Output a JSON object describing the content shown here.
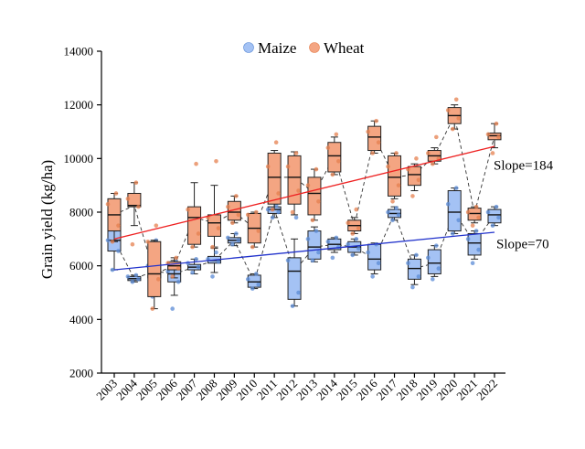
{
  "chart_data": {
    "type": "box",
    "title": "",
    "xlabel": "",
    "ylabel": "Grain yield (kg/ha)",
    "ylim": [
      2000,
      14000
    ],
    "yticks": [
      2000,
      4000,
      6000,
      8000,
      10000,
      12000,
      14000
    ],
    "grid": false,
    "legend": "top-center",
    "categories": [
      "2003",
      "2004",
      "2005",
      "2006",
      "2007",
      "2008",
      "2009",
      "2010",
      "2011",
      "2012",
      "2013",
      "2014",
      "2015",
      "2016",
      "2017",
      "2018",
      "2019",
      "2020",
      "2021",
      "2022"
    ],
    "series": [
      {
        "name": "Maize",
        "color": "#a4c2f4",
        "edge": "#5b8bd6",
        "boxes": [
          {
            "min": 5850,
            "q1": 6550,
            "median": 6950,
            "q3": 7350,
            "max": 7350,
            "points": [
              5850,
              6550,
              6950,
              7350
            ]
          },
          {
            "min": 5400,
            "q1": 5450,
            "median": 5520,
            "q3": 5600,
            "max": 5650,
            "points": [
              5400,
              5500,
              5600,
              5650
            ]
          },
          {
            "min": 4850,
            "q1": 5550,
            "median": 5800,
            "q3": 6050,
            "max": 6950,
            "points": [
              4850,
              5600,
              6000,
              6950
            ]
          },
          {
            "min": 4900,
            "q1": 5400,
            "median": 5700,
            "q3": 6100,
            "max": 6200,
            "points": [
              4400,
              5400,
              5800,
              6150
            ]
          },
          {
            "min": 5700,
            "q1": 5850,
            "median": 5950,
            "q3": 6050,
            "max": 6250,
            "points": [
              5750,
              5950,
              6100,
              6250
            ]
          },
          {
            "min": 5750,
            "q1": 6100,
            "median": 6200,
            "q3": 6350,
            "max": 6650,
            "points": [
              5600,
              6150,
              6250,
              6500
            ]
          },
          {
            "min": 6750,
            "q1": 6850,
            "median": 6950,
            "q3": 7050,
            "max": 7200,
            "points": [
              6800,
              6950,
              7050,
              7200
            ]
          },
          {
            "min": 5150,
            "q1": 5200,
            "median": 5400,
            "q3": 5650,
            "max": 5700,
            "points": [
              5150,
              5300,
              5500,
              5700
            ]
          },
          {
            "min": 7800,
            "q1": 7950,
            "median": 8100,
            "q3": 8200,
            "max": 8350,
            "points": [
              7800,
              8000,
              8100,
              8250
            ]
          },
          {
            "min": 4500,
            "q1": 4750,
            "median": 5800,
            "q3": 6300,
            "max": 7000,
            "points": [
              4500,
              5000,
              6200,
              7800
            ]
          },
          {
            "min": 6150,
            "q1": 6250,
            "median": 6700,
            "q3": 7300,
            "max": 7450,
            "points": [
              6200,
              6500,
              7000,
              7300
            ]
          },
          {
            "min": 6500,
            "q1": 6600,
            "median": 6800,
            "q3": 7000,
            "max": 7050,
            "points": [
              6300,
              6700,
              6900,
              7050
            ]
          },
          {
            "min": 6400,
            "q1": 6500,
            "median": 6700,
            "q3": 6900,
            "max": 7000,
            "points": [
              6400,
              6650,
              6800,
              7000
            ]
          },
          {
            "min": 5700,
            "q1": 5850,
            "median": 6250,
            "q3": 6800,
            "max": 6850,
            "points": [
              5600,
              6100,
              6500,
              6800
            ]
          },
          {
            "min": 7700,
            "q1": 7800,
            "median": 7950,
            "q3": 8100,
            "max": 8200,
            "points": [
              7700,
              7900,
              8000,
              8150
            ]
          },
          {
            "min": 5300,
            "q1": 5500,
            "median": 5900,
            "q3": 6250,
            "max": 6400,
            "points": [
              5200,
              5600,
              6100,
              6400
            ]
          },
          {
            "min": 5600,
            "q1": 5700,
            "median": 6100,
            "q3": 6600,
            "max": 6750,
            "points": [
              5500,
              5900,
              6300,
              6750
            ]
          },
          {
            "min": 7200,
            "q1": 7300,
            "median": 8000,
            "q3": 8800,
            "max": 8900,
            "points": [
              7200,
              7700,
              8300,
              8900
            ]
          },
          {
            "min": 6250,
            "q1": 6400,
            "median": 6850,
            "q3": 7200,
            "max": 7300,
            "points": [
              6100,
              6600,
              7000,
              7300
            ]
          },
          {
            "min": 7500,
            "q1": 7600,
            "median": 7900,
            "q3": 8100,
            "max": 8200,
            "points": [
              7500,
              7800,
              8000,
              8200
            ]
          }
        ]
      },
      {
        "name": "Wheat",
        "color": "#f4a582",
        "edge": "#e6804f",
        "boxes": [
          {
            "min": 6900,
            "q1": 7300,
            "median": 7900,
            "q3": 8500,
            "max": 8700,
            "points": [
              6900,
              7500,
              8300,
              8700
            ]
          },
          {
            "min": 7500,
            "q1": 8200,
            "median": 8250,
            "q3": 8700,
            "max": 9100,
            "points": [
              6800,
              8200,
              8500,
              9100
            ]
          },
          {
            "min": 4400,
            "q1": 4850,
            "median": 5700,
            "q3": 6900,
            "max": 6950,
            "points": [
              4400,
              5500,
              6900,
              7500
            ]
          },
          {
            "min": 5550,
            "q1": 5850,
            "median": 6000,
            "q3": 6150,
            "max": 6300,
            "points": [
              5600,
              5900,
              6100,
              6300
            ]
          },
          {
            "min": 6700,
            "q1": 6800,
            "median": 7800,
            "q3": 8200,
            "max": 9100,
            "points": [
              6700,
              7200,
              8100,
              9800
            ]
          },
          {
            "min": 6700,
            "q1": 7100,
            "median": 7600,
            "q3": 7900,
            "max": 9000,
            "points": [
              6700,
              7400,
              7800,
              9900
            ]
          },
          {
            "min": 7600,
            "q1": 7700,
            "median": 8000,
            "q3": 8400,
            "max": 8600,
            "points": [
              7600,
              7900,
              8200,
              8600
            ]
          },
          {
            "min": 6700,
            "q1": 6850,
            "median": 7400,
            "q3": 7950,
            "max": 8000,
            "points": [
              6700,
              7300,
              7900,
              8000
            ]
          },
          {
            "min": 8100,
            "q1": 8300,
            "median": 9300,
            "q3": 10200,
            "max": 10300,
            "points": [
              8100,
              8700,
              9700,
              10600
            ]
          },
          {
            "min": 7900,
            "q1": 8300,
            "median": 9300,
            "q3": 10100,
            "max": 10250,
            "points": [
              8000,
              8800,
              9700,
              10200
            ]
          },
          {
            "min": 7700,
            "q1": 7900,
            "median": 8700,
            "q3": 9300,
            "max": 9600,
            "points": [
              7700,
              8400,
              9000,
              9600
            ]
          },
          {
            "min": 9400,
            "q1": 9500,
            "median": 10100,
            "q3": 10600,
            "max": 10800,
            "points": [
              9400,
              9900,
              10400,
              10900
            ]
          },
          {
            "min": 7200,
            "q1": 7300,
            "median": 7500,
            "q3": 7700,
            "max": 7800,
            "points": [
              7200,
              7400,
              7600,
              8100
            ]
          },
          {
            "min": 10200,
            "q1": 10300,
            "median": 10800,
            "q3": 11200,
            "max": 11400,
            "points": [
              10200,
              10600,
              11000,
              11400
            ]
          },
          {
            "min": 8500,
            "q1": 8600,
            "median": 9300,
            "q3": 10100,
            "max": 10200,
            "points": [
              8400,
              9000,
              9700,
              10200
            ]
          },
          {
            "min": 8800,
            "q1": 9000,
            "median": 9400,
            "q3": 9700,
            "max": 9800,
            "points": [
              8600,
              9200,
              9600,
              10000
            ]
          },
          {
            "min": 9800,
            "q1": 9900,
            "median": 10100,
            "q3": 10300,
            "max": 10400,
            "points": [
              9800,
              10000,
              10200,
              10800
            ]
          },
          {
            "min": 11100,
            "q1": 11300,
            "median": 11600,
            "q3": 11900,
            "max": 12000,
            "points": [
              11100,
              11500,
              11800,
              12200
            ]
          },
          {
            "min": 7600,
            "q1": 7700,
            "median": 7950,
            "q3": 8150,
            "max": 8200,
            "points": [
              7500,
              7800,
              8000,
              8200
            ]
          },
          {
            "min": 10400,
            "q1": 10700,
            "median": 10850,
            "q3": 10950,
            "max": 11300,
            "points": [
              10200,
              10800,
              10900,
              11300
            ]
          }
        ]
      }
    ],
    "trendlines": [
      {
        "series": "Wheat",
        "color": "#ee2222",
        "y_start": 7000,
        "y_end": 10450,
        "label": "Slope=184"
      },
      {
        "series": "Maize",
        "color": "#2233cc",
        "y_start": 5850,
        "y_end": 7250,
        "label": "Slope=70"
      }
    ]
  }
}
